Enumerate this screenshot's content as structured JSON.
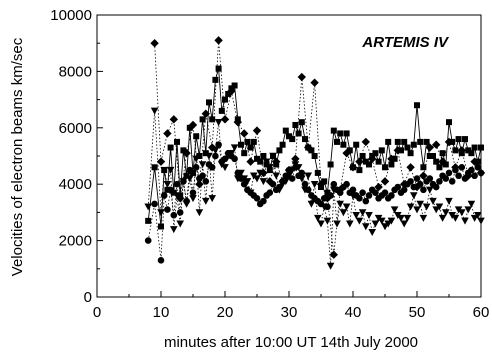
{
  "chart_data": {
    "type": "scatter",
    "xlabel": "minutes after 10:00 UT 14th July 2000",
    "ylabel": "Velocities of electron beams km/sec",
    "annotation": "ARTEMIS IV",
    "xlim": [
      0,
      60
    ],
    "ylim": [
      0,
      10000
    ],
    "xticks": [
      0,
      10,
      20,
      30,
      40,
      50,
      60
    ],
    "yticks": [
      0,
      2000,
      4000,
      6000,
      8000,
      10000
    ],
    "grid": false,
    "legend": "none",
    "series": [
      {
        "marker": "square",
        "line": "solid",
        "x": [
          8,
          9,
          10,
          10.5,
          11,
          11.5,
          12,
          12.5,
          13,
          13.5,
          14,
          14.5,
          15,
          15.5,
          16,
          16.5,
          17,
          17.5,
          18,
          18.5,
          19,
          19.5,
          20,
          20.5,
          21,
          21.5,
          22,
          22.5,
          23,
          23.5,
          24,
          24.5,
          25,
          25.5,
          26,
          26.5,
          27,
          27.5,
          28,
          28.5,
          29,
          29.5,
          30,
          30.5,
          31,
          31.5,
          32,
          32.5,
          33,
          33.5,
          34,
          34.5,
          35,
          35.5,
          36,
          36.5,
          37,
          37.5,
          38,
          38.5,
          39,
          39.5,
          40,
          40.5,
          41,
          41.5,
          42,
          42.5,
          43,
          43.5,
          44,
          44.5,
          45,
          45.5,
          46,
          46.5,
          47,
          47.5,
          48,
          48.5,
          49,
          49.5,
          50,
          50.5,
          51,
          51.5,
          52,
          52.5,
          53,
          53.5,
          54,
          54.5,
          55,
          55.5,
          56,
          56.5,
          57,
          57.5,
          58,
          58.5,
          59,
          59.5,
          60
        ],
        "y": [
          2700,
          4600,
          2500,
          4500,
          3800,
          5300,
          3700,
          5500,
          3600,
          5200,
          4300,
          6000,
          4400,
          5700,
          5000,
          6300,
          5100,
          6900,
          6300,
          7700,
          8100,
          6600,
          7000,
          7200,
          7400,
          7500,
          6300,
          5400,
          5100,
          5500,
          5300,
          5500,
          4900,
          4800,
          5000,
          4700,
          4500,
          5000,
          4700,
          5200,
          5400,
          5900,
          5700,
          5600,
          6100,
          5800,
          6200,
          5600,
          5300,
          5200,
          5000,
          4400,
          3900,
          4100,
          3700,
          4700,
          5900,
          5500,
          5800,
          5400,
          5800,
          5200,
          4600,
          5400,
          4500,
          5000,
          4800,
          4700,
          5000,
          5100,
          4800,
          5200,
          4600,
          5500,
          4700,
          4900,
          5500,
          5200,
          5500,
          5300,
          5100,
          5400,
          6800,
          5500,
          4600,
          5500,
          5000,
          5000,
          4800,
          4600,
          5100,
          4700,
          6200,
          5500,
          5200,
          5600,
          5100,
          5600,
          5200,
          5100,
          5300,
          4800,
          5300
        ]
      },
      {
        "marker": "diamond",
        "line": "dotted",
        "x": [
          9,
          10,
          11,
          12,
          13,
          14,
          15,
          16,
          17,
          18,
          19,
          20,
          21,
          22,
          23,
          24,
          25,
          26,
          27,
          28,
          29,
          30,
          31,
          32,
          33,
          34,
          35,
          36,
          37,
          38,
          39,
          40,
          41,
          42,
          43,
          44,
          45,
          46,
          47,
          48,
          49,
          50,
          51,
          52,
          53,
          54,
          55,
          56,
          57,
          58,
          59,
          60
        ],
        "y": [
          9000,
          4800,
          5800,
          6300,
          3500,
          5100,
          6100,
          4000,
          6500,
          5300,
          9100,
          6300,
          7300,
          6200,
          5800,
          4800,
          5900,
          4400,
          4100,
          4800,
          4100,
          4500,
          4900,
          7800,
          5300,
          7600,
          4000,
          3500,
          1500,
          3800,
          5100,
          4600,
          4800,
          5500,
          4900,
          3900,
          4100,
          4900,
          5200,
          4000,
          4600,
          3900,
          4300,
          5300,
          5400,
          4800,
          5500,
          4600,
          5200,
          4300,
          4800,
          4400
        ]
      },
      {
        "marker": "triangle-down",
        "line": "dotted",
        "x": [
          8,
          9,
          10,
          10.5,
          11,
          11.5,
          12,
          12.5,
          13,
          13.5,
          14,
          14.5,
          15,
          15.5,
          16,
          16.5,
          17,
          17.5,
          18,
          18.5,
          19,
          19.5,
          20,
          20.5,
          21,
          21.5,
          22,
          22.5,
          23,
          23.5,
          24,
          24.5,
          25,
          25.5,
          26,
          26.5,
          27,
          27.5,
          28,
          28.5,
          29,
          29.5,
          30,
          30.5,
          31,
          31.5,
          32,
          32.5,
          33,
          33.5,
          34,
          34.5,
          35,
          35.5,
          36,
          36.5,
          37,
          37.5,
          38,
          38.5,
          39,
          39.5,
          40,
          40.5,
          41,
          41.5,
          42,
          42.5,
          43,
          43.5,
          44,
          44.5,
          45,
          45.5,
          46,
          46.5,
          47,
          47.5,
          48,
          48.5,
          49,
          49.5,
          50,
          50.5,
          51,
          51.5,
          52,
          52.5,
          53,
          53.5,
          54,
          54.5,
          55,
          55.5,
          56,
          56.5,
          57,
          57.5,
          58,
          58.5,
          59,
          59.5,
          60
        ],
        "y": [
          3200,
          6600,
          3000,
          4500,
          4000,
          4500,
          2400,
          3600,
          2600,
          4100,
          3300,
          4200,
          3500,
          4900,
          3000,
          4700,
          3400,
          5000,
          3500,
          5200,
          6200,
          4700,
          4600,
          5000,
          5100,
          5300,
          4200,
          4400,
          4200,
          4100,
          3700,
          4300,
          4200,
          4400,
          4100,
          4800,
          4600,
          5000,
          4300,
          3800,
          4000,
          4100,
          4300,
          4500,
          4700,
          4600,
          4200,
          3800,
          4300,
          3300,
          4000,
          2800,
          2600,
          3200,
          2700,
          1100,
          3800,
          2600,
          3300,
          3000,
          3200,
          2600,
          3600,
          2900,
          2700,
          3000,
          2500,
          2900,
          2300,
          2600,
          2800,
          2700,
          2500,
          2600,
          2700,
          3100,
          2900,
          2800,
          2600,
          2800,
          3200,
          3600,
          3100,
          3300,
          2800,
          3200,
          3800,
          3400,
          3100,
          3200,
          2800,
          3000,
          3400,
          2900,
          2800,
          3100,
          3000,
          2700,
          3100,
          3300,
          2800,
          2900,
          2700
        ]
      },
      {
        "marker": "circle",
        "line": "dotted",
        "x": [
          8,
          9,
          10,
          10.5,
          11,
          11.5,
          12,
          12.5,
          13,
          13.5,
          14,
          14.5,
          15,
          15.5,
          16,
          16.5,
          17,
          17.5,
          18,
          18.5,
          19,
          19.5,
          20,
          20.5,
          21,
          21.5,
          22,
          22.5,
          23,
          23.5,
          24,
          24.5,
          25,
          25.5,
          26,
          26.5,
          27,
          27.5,
          28,
          28.5,
          29,
          29.5,
          30,
          30.5,
          31,
          31.5,
          32,
          32.5,
          33,
          33.5,
          34,
          34.5,
          35,
          35.5,
          36,
          36.5,
          37,
          37.5,
          38,
          38.5,
          39,
          39.5,
          40,
          40.5,
          41,
          41.5,
          42,
          42.5,
          43,
          43.5,
          44,
          44.5,
          45,
          45.5,
          46,
          46.5,
          47,
          47.5,
          48,
          48.5,
          49,
          49.5,
          50,
          50.5,
          51,
          51.5,
          52,
          52.5,
          53,
          53.5,
          54,
          54.5,
          55,
          55.5,
          56,
          56.5,
          57,
          57.5,
          58,
          58.5,
          59,
          59.5,
          60
        ],
        "y": [
          2000,
          3300,
          1300,
          3600,
          3100,
          3800,
          2900,
          4000,
          3000,
          4100,
          3400,
          4500,
          3700,
          4600,
          4200,
          4300,
          4100,
          4700,
          4600,
          5000,
          5400,
          4800,
          4900,
          5100,
          5000,
          4900,
          4400,
          4200,
          4000,
          3800,
          3700,
          3600,
          3500,
          3300,
          3400,
          3600,
          3700,
          4000,
          3800,
          3900,
          4100,
          4300,
          4500,
          4200,
          4600,
          4300,
          4400,
          4000,
          3800,
          3600,
          3500,
          3400,
          3300,
          3500,
          3200,
          3600,
          4000,
          3800,
          3700,
          3900,
          4000,
          3700,
          3800,
          3600,
          3500,
          3700,
          3400,
          3600,
          3800,
          3700,
          3500,
          3600,
          3700,
          3500,
          3600,
          3800,
          3900,
          3700,
          3800,
          4000,
          4100,
          3900,
          4200,
          4000,
          3800,
          4100,
          4200,
          4000,
          3900,
          4100,
          4300,
          4200,
          4400,
          4100,
          4500,
          4300,
          4600,
          4200,
          4400,
          4500,
          4300,
          4600,
          4400
        ]
      }
    ]
  }
}
